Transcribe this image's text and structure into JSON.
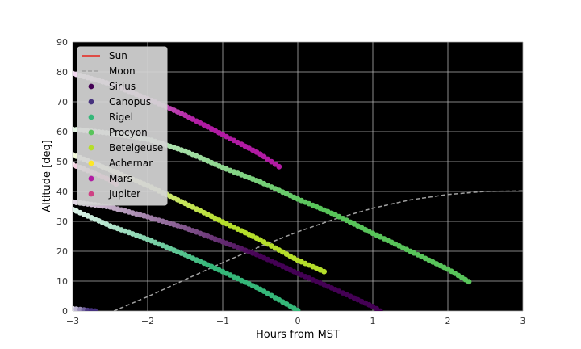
{
  "chart_data": {
    "type": "scatter",
    "xlabel": "Hours from MST",
    "ylabel": "Altitude [deg]",
    "xlim": [
      -3,
      3
    ],
    "ylim": [
      0,
      90
    ],
    "x_ticks": [
      -3,
      -2,
      -1,
      0,
      1,
      2,
      3
    ],
    "y_ticks": [
      0,
      10,
      20,
      30,
      40,
      50,
      60,
      70,
      80,
      90
    ],
    "x_tick_labels": [
      "−3",
      "−2",
      "−1",
      "0",
      "1",
      "2",
      "3"
    ],
    "y_tick_labels": [
      "0",
      "10",
      "20",
      "30",
      "40",
      "50",
      "60",
      "70",
      "80",
      "90"
    ],
    "plot_background": "#000000",
    "grid": true,
    "legend_position": "upper-left",
    "colormap_note": "points brighten toward the start of each track",
    "series": [
      {
        "name": "Sun",
        "kind": "line",
        "color": "#e8251c",
        "style": "solid",
        "points": []
      },
      {
        "name": "Moon",
        "kind": "line",
        "color": "#a0a0a0",
        "style": "dashed",
        "points": [
          [
            -2.45,
            0
          ],
          [
            -2,
            4.8
          ],
          [
            -1.5,
            10.5
          ],
          [
            -1,
            16.2
          ],
          [
            -0.5,
            21.6
          ],
          [
            0,
            26.5
          ],
          [
            0.5,
            30.8
          ],
          [
            1,
            34.4
          ],
          [
            1.5,
            37.2
          ],
          [
            2,
            39.0
          ],
          [
            2.5,
            40.0
          ],
          [
            3,
            40.2
          ]
        ]
      },
      {
        "name": "Sirius",
        "kind": "scatter",
        "color": "#440154",
        "points": [
          [
            -3,
            36.5
          ],
          [
            -2.5,
            34.8
          ],
          [
            -2,
            31.5
          ],
          [
            -1.5,
            27.8
          ],
          [
            -1,
            23.2
          ],
          [
            -0.5,
            18.4
          ],
          [
            0,
            12.6
          ],
          [
            0.5,
            7.2
          ],
          [
            1.0,
            1.5
          ],
          [
            1.1,
            0
          ]
        ]
      },
      {
        "name": "Canopus",
        "kind": "scatter",
        "color": "#46327e",
        "points": [
          [
            -3,
            0.8
          ],
          [
            -2.9,
            0.5
          ],
          [
            -2.8,
            0.2
          ],
          [
            -2.7,
            0
          ]
        ]
      },
      {
        "name": "Rigel",
        "kind": "scatter",
        "color": "#35b779",
        "points": [
          [
            -3,
            34
          ],
          [
            -2.5,
            28.5
          ],
          [
            -2,
            24
          ],
          [
            -1.5,
            18.8
          ],
          [
            -1,
            13.2
          ],
          [
            -0.5,
            7.3
          ],
          [
            0,
            0.2
          ]
        ]
      },
      {
        "name": "Procyon",
        "kind": "scatter",
        "color": "#58c45a",
        "points": [
          [
            -3,
            60.8
          ],
          [
            -2.5,
            59.5
          ],
          [
            -2,
            57.5
          ],
          [
            -1.5,
            53.5
          ],
          [
            -1,
            48.0
          ],
          [
            -0.5,
            43.2
          ],
          [
            0,
            37.5
          ],
          [
            0.5,
            32.2
          ],
          [
            1,
            26.0
          ],
          [
            1.5,
            20.0
          ],
          [
            2,
            14.0
          ],
          [
            2.28,
            9.8
          ]
        ]
      },
      {
        "name": "Betelgeuse",
        "kind": "scatter",
        "color": "#b5de2b",
        "points": [
          [
            -3,
            52.3
          ],
          [
            -2.5,
            47.2
          ],
          [
            -2,
            42.0
          ],
          [
            -1.5,
            36.0
          ],
          [
            -1,
            29.8
          ],
          [
            -0.5,
            23.8
          ],
          [
            0,
            17.0
          ],
          [
            0.35,
            13.2
          ]
        ]
      },
      {
        "name": "Achernar",
        "kind": "scatter",
        "color": "#fde725",
        "points": []
      },
      {
        "name": "Mars",
        "kind": "scatter",
        "color": "#b11ba3",
        "points": [
          [
            -3,
            79.5
          ],
          [
            -2.5,
            76.0
          ],
          [
            -2,
            71.0
          ],
          [
            -1.5,
            65.5
          ],
          [
            -1,
            59.0
          ],
          [
            -0.5,
            52.5
          ],
          [
            -0.25,
            48.3
          ]
        ]
      },
      {
        "name": "Jupiter",
        "kind": "scatter",
        "color": "#cf4184",
        "points": [
          [
            -3,
            49.0
          ],
          [
            -2.75,
            46.5
          ],
          [
            -2.5,
            43.8
          ],
          [
            -2.42,
            42.5
          ]
        ]
      }
    ]
  }
}
